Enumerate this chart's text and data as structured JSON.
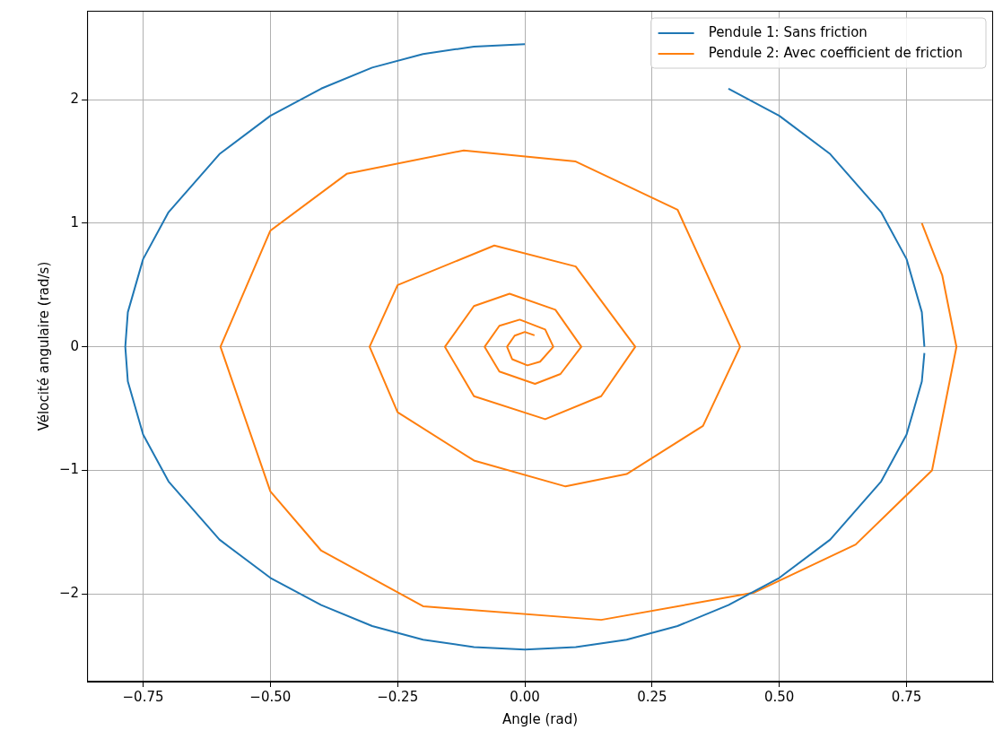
{
  "chart_data": {
    "type": "line",
    "xlabel": "Angle (rad)",
    "ylabel": "Vélocité angulaire (rad/s)",
    "xlim": [
      -0.86,
      0.92
    ],
    "ylim": [
      -2.71,
      2.72
    ],
    "xticks": [
      {
        "value": -0.75,
        "label": "−0.75"
      },
      {
        "value": -0.5,
        "label": "−0.50"
      },
      {
        "value": -0.25,
        "label": "−0.25"
      },
      {
        "value": 0,
        "label": "0.00"
      },
      {
        "value": 0.25,
        "label": "0.25"
      },
      {
        "value": 0.5,
        "label": "0.50"
      },
      {
        "value": 0.75,
        "label": "0.75"
      }
    ],
    "yticks": [
      {
        "value": -2,
        "label": "−2"
      },
      {
        "value": -1,
        "label": "−1"
      },
      0,
      1,
      2
    ],
    "grid": true,
    "legend": "top right",
    "line_style": "solid",
    "marker": "none",
    "series": [
      {
        "name": "Pendule 1: Sans friction",
        "color": "#1f77b4",
        "x": [
          0.785,
          0.78,
          0.75,
          0.7,
          0.6,
          0.5,
          0.4,
          0.3,
          0.2,
          0.1,
          0,
          -0.1,
          -0.2,
          -0.3,
          -0.4,
          -0.5,
          -0.6,
          -0.7,
          -0.75,
          -0.78,
          -0.785,
          -0.78,
          -0.75,
          -0.7,
          -0.6,
          -0.5,
          -0.4,
          -0.3,
          -0.2,
          -0.1,
          0,
          0.1,
          0.2,
          0.3,
          0.4,
          0.5,
          0.6,
          0.7,
          0.75,
          0.78,
          0.785
        ],
        "values": [
          0,
          0.28,
          0.71,
          1.09,
          1.56,
          1.87,
          2.09,
          null,
          null,
          null,
          2.45,
          2.43,
          2.37,
          2.26,
          2.09,
          1.87,
          1.56,
          1.09,
          0.71,
          0.28,
          0,
          -0.28,
          -0.71,
          -1.09,
          -1.56,
          -1.87,
          -2.09,
          -2.26,
          -2.37,
          -2.43,
          -2.45,
          -2.43,
          -2.37,
          -2.26,
          -2.09,
          -1.87,
          -1.56,
          -1.09,
          -0.71,
          -0.28,
          -0.05
        ]
      },
      {
        "name": "Pendule 2: Avec coefficient de friction",
        "color": "#ff7f0e",
        "x": [
          0.78,
          0.82,
          0.848,
          0.8,
          0.65,
          0.45,
          0.15,
          -0.2,
          -0.4,
          -0.5,
          -0.598,
          -0.5,
          -0.35,
          -0.12,
          0.1,
          0.3,
          0.423,
          0.35,
          0.2,
          0.08,
          -0.1,
          -0.25,
          -0.305,
          -0.25,
          -0.06,
          0.1,
          0.217,
          0.15,
          0.04,
          -0.1,
          -0.157,
          -0.1,
          -0.03,
          0.06,
          0.111,
          0.07,
          0.02,
          -0.05,
          -0.079,
          -0.05,
          -0.01,
          0.04,
          0.056,
          0.03,
          0.005,
          -0.025,
          -0.035,
          -0.02,
          0,
          0.019
        ],
        "values": [
          1.0,
          0.58,
          0,
          -1.0,
          -1.6,
          -1.99,
          -2.21,
          -2.1,
          -1.65,
          -1.17,
          0,
          0.94,
          1.4,
          1.59,
          1.5,
          1.11,
          0,
          -0.64,
          -1.03,
          -1.13,
          -0.92,
          -0.53,
          0,
          0.5,
          0.82,
          0.65,
          0,
          -0.4,
          -0.586,
          -0.4,
          0,
          0.33,
          0.43,
          0.3,
          0,
          -0.22,
          -0.3,
          -0.2,
          0,
          0.17,
          0.22,
          0.14,
          0,
          -0.12,
          -0.15,
          -0.1,
          0,
          0.09,
          0.12,
          0.093
        ]
      }
    ]
  }
}
